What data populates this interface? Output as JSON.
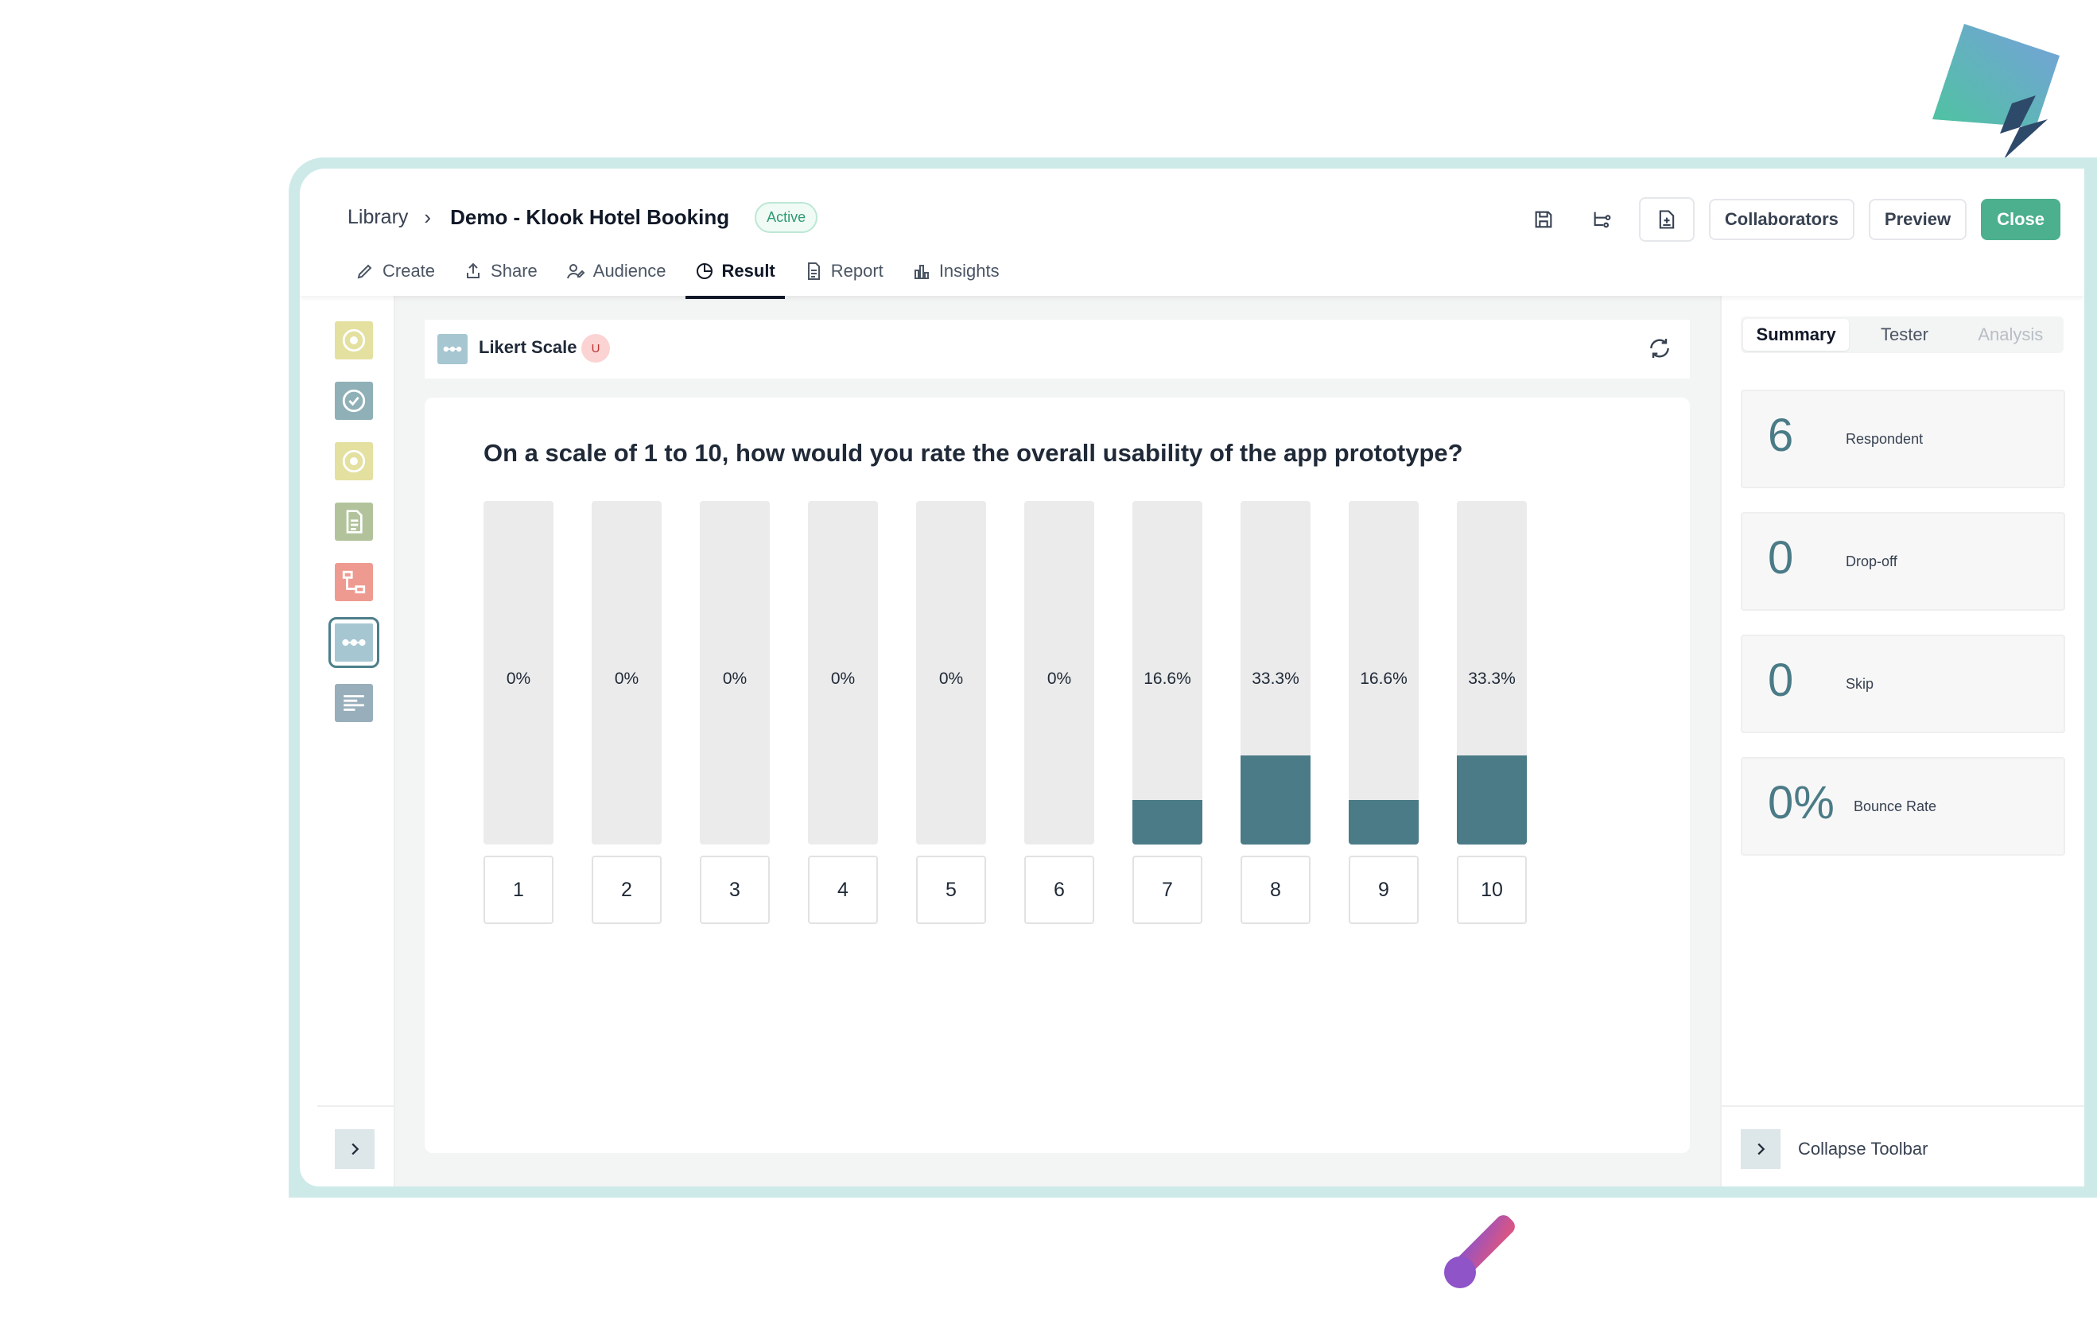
{
  "header": {
    "breadcrumb_root": "Library",
    "breadcrumb_sep": "›",
    "project_title": "Demo - Klook Hotel Booking",
    "status_badge": "Active",
    "buttons": {
      "collaborators": "Collaborators",
      "preview": "Preview",
      "close": "Close"
    },
    "icons": [
      "save-icon",
      "flow-icon",
      "add-document-icon"
    ]
  },
  "tabs": [
    {
      "label": "Create",
      "icon": "pencil-icon"
    },
    {
      "label": "Share",
      "icon": "share-icon"
    },
    {
      "label": "Audience",
      "icon": "audience-icon"
    },
    {
      "label": "Result",
      "icon": "pie-chart-icon",
      "active": true
    },
    {
      "label": "Report",
      "icon": "report-icon"
    },
    {
      "label": "Insights",
      "icon": "insights-icon"
    }
  ],
  "rail": {
    "items": [
      {
        "icon": "target-icon",
        "color": "#e4e0a0"
      },
      {
        "icon": "check-circle-icon",
        "color": "#8fb0b6"
      },
      {
        "icon": "target-icon",
        "color": "#e4e0a0"
      },
      {
        "icon": "document-icon",
        "color": "#b2c39c"
      },
      {
        "icon": "branch-icon",
        "color": "#ee9a90"
      },
      {
        "icon": "likert-icon",
        "color": "#a6c6d2",
        "selected": true
      },
      {
        "icon": "text-lines-icon",
        "color": "#98aebb"
      }
    ]
  },
  "question_bar": {
    "type_label": "Likert Scale",
    "badge": "U"
  },
  "question": {
    "text": "On a scale of 1 to 10, how would you rate the overall usability of the app prototype?"
  },
  "chart_data": {
    "type": "bar",
    "categories": [
      "1",
      "2",
      "3",
      "4",
      "5",
      "6",
      "7",
      "8",
      "9",
      "10"
    ],
    "values": [
      0,
      0,
      0,
      0,
      0,
      0,
      16.6,
      33.3,
      16.6,
      33.3
    ],
    "labels": [
      "0%",
      "0%",
      "0%",
      "0%",
      "0%",
      "0%",
      "16.6%",
      "33.3%",
      "16.6%",
      "33.3%"
    ],
    "ylim": [
      0,
      100
    ],
    "bar_color": "#4a7b87",
    "track_color": "#ebebeb"
  },
  "right_panel": {
    "tabs": [
      "Summary",
      "Tester",
      "Analysis"
    ],
    "active_tab": "Summary",
    "stats": [
      {
        "value": "6",
        "label": "Respondent"
      },
      {
        "value": "0",
        "label": "Drop-off"
      },
      {
        "value": "0",
        "label": "Skip"
      },
      {
        "value": "0%",
        "label": "Bounce Rate"
      }
    ],
    "collapse_label": "Collapse Toolbar"
  },
  "colors": {
    "accent": "#4caf8e",
    "bar": "#4a7b87",
    "frame": "#cdeae8"
  }
}
